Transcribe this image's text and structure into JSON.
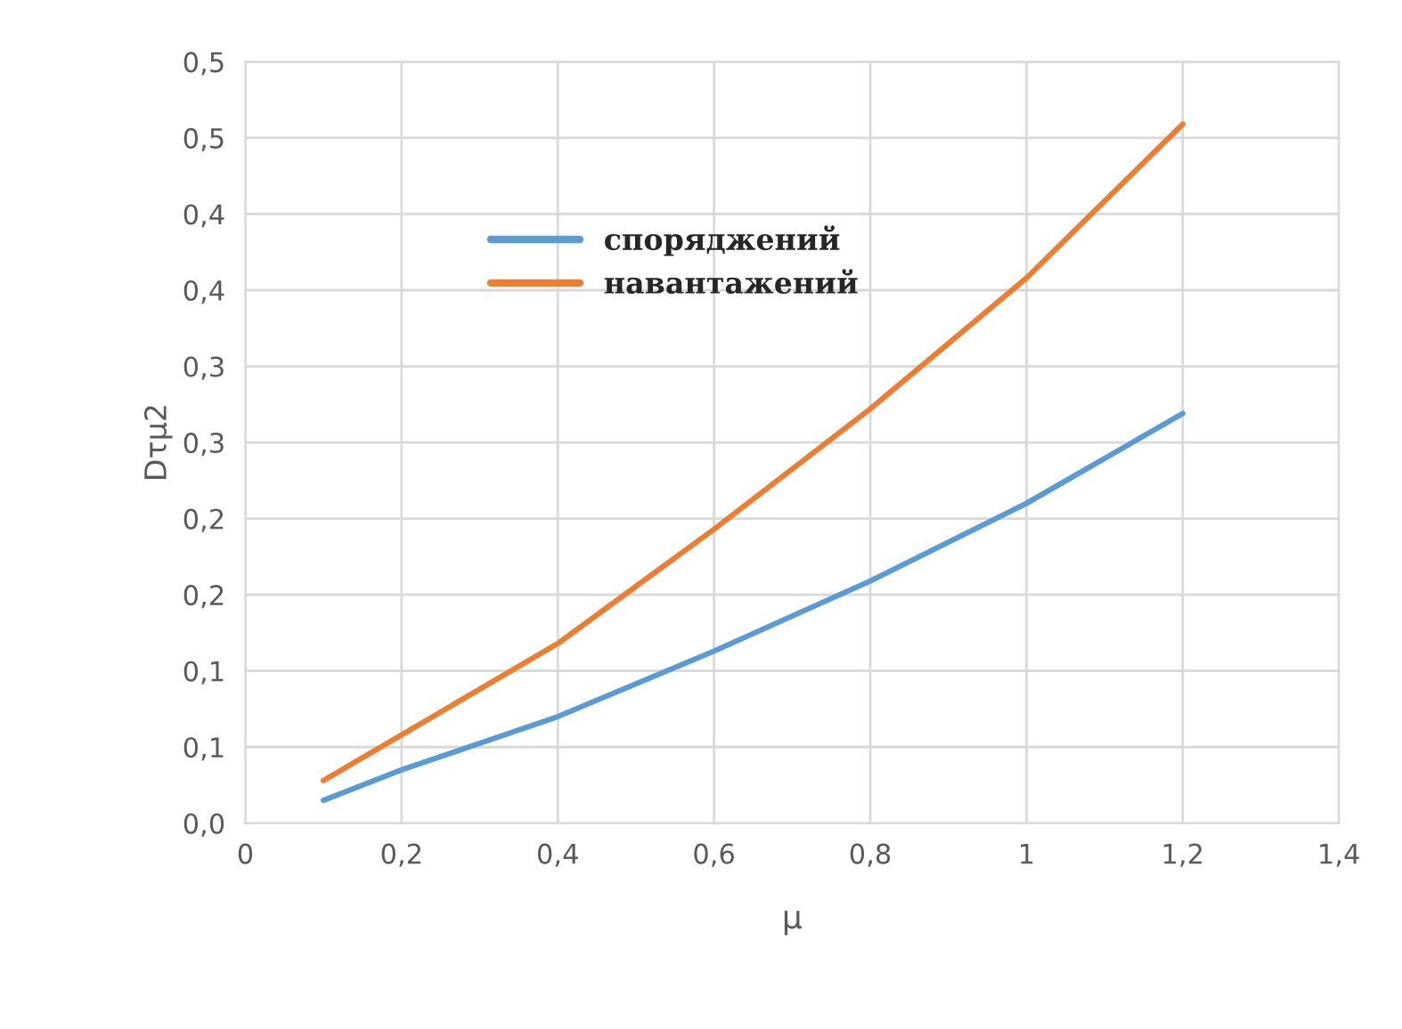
{
  "chart_data": {
    "type": "line",
    "xlabel": "μ",
    "ylabel": "Dτμ2",
    "x": [
      0.1,
      0.2,
      0.4,
      0.6,
      0.8,
      1.0,
      1.2
    ],
    "series": [
      {
        "name": "споряджений",
        "color": "#5b9bd5",
        "values": [
          0.015,
          0.035,
          0.07,
          0.113,
          0.159,
          0.21,
          0.269
        ]
      },
      {
        "name": "навантажений",
        "color": "#ed7d31",
        "values": [
          0.028,
          0.058,
          0.118,
          0.193,
          0.272,
          0.358,
          0.459
        ]
      }
    ],
    "xlim": [
      0,
      1.4
    ],
    "xticks": [
      0,
      {
        "value": 0.2,
        "label": "0,2"
      },
      {
        "value": 0.4,
        "label": "0,4"
      },
      {
        "value": 0.6,
        "label": "0,6"
      },
      {
        "value": 0.8,
        "label": "0,8"
      },
      1,
      {
        "value": 1.2,
        "label": "1,2"
      },
      {
        "value": 1.4,
        "label": "1,4"
      }
    ],
    "ylim": [
      0,
      0.5
    ],
    "yticks": [
      {
        "value": 0,
        "label": "0,0"
      },
      {
        "value": 0.05,
        "label": "0,1"
      },
      {
        "value": 0.1,
        "label": "0,1"
      },
      {
        "value": 0.15,
        "label": "0,2"
      },
      {
        "value": 0.2,
        "label": "0,2"
      },
      {
        "value": 0.25,
        "label": "0,3"
      },
      {
        "value": 0.3,
        "label": "0,3"
      },
      {
        "value": 0.35,
        "label": "0,4"
      },
      {
        "value": 0.4,
        "label": "0,4"
      },
      {
        "value": 0.45,
        "label": "0,5"
      },
      {
        "value": 0.5,
        "label": "0,5"
      }
    ],
    "grid": true,
    "legend": "top left",
    "marker": "none",
    "line_style": "solid"
  }
}
